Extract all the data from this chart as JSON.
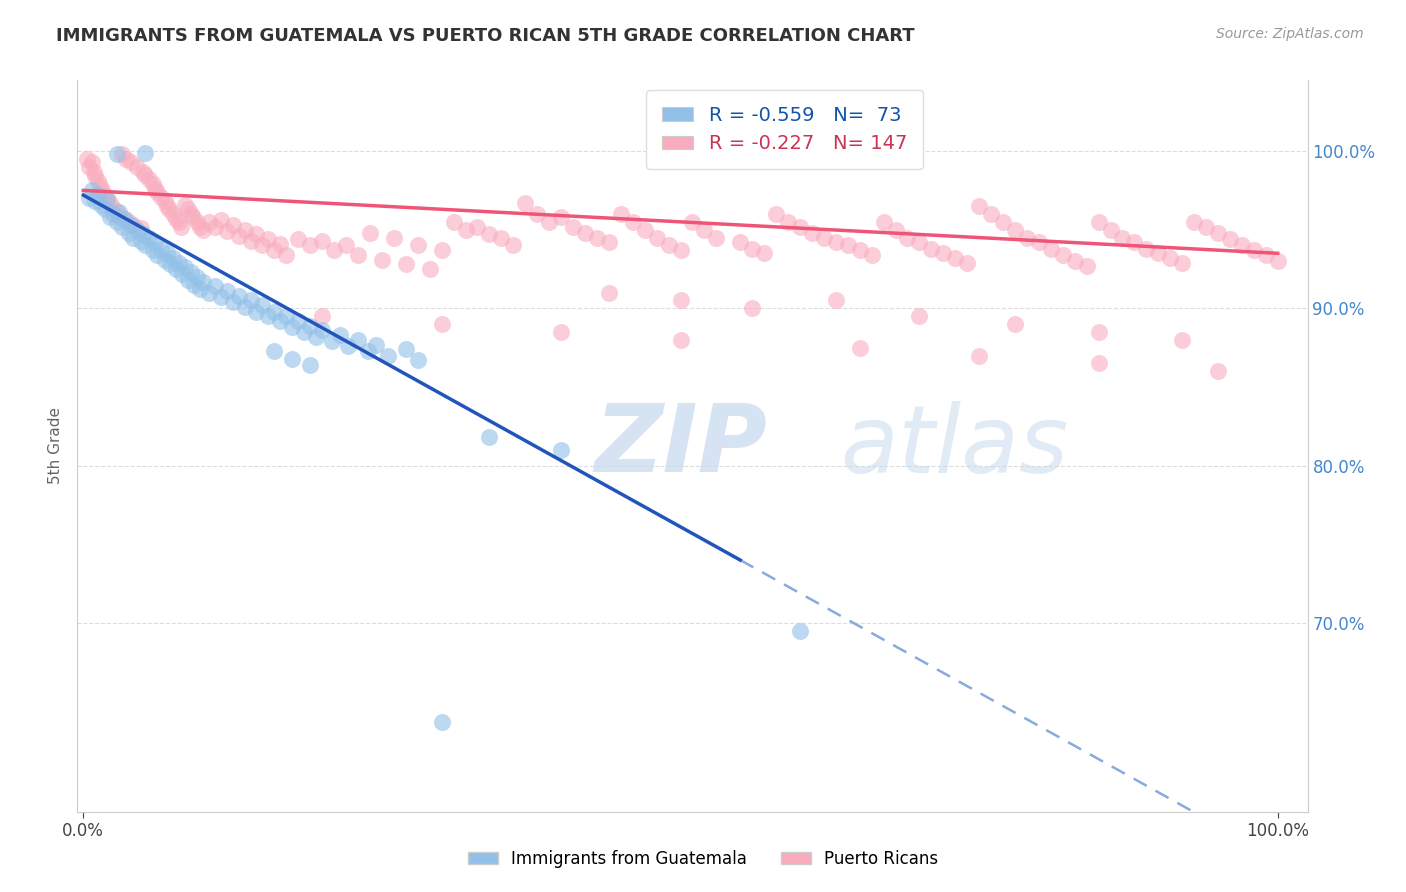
{
  "title": "IMMIGRANTS FROM GUATEMALA VS PUERTO RICAN 5TH GRADE CORRELATION CHART",
  "source": "Source: ZipAtlas.com",
  "ylabel": "5th Grade",
  "legend_r_blue": "-0.559",
  "legend_n_blue": "73",
  "legend_r_pink": "-0.227",
  "legend_n_pink": "147",
  "blue_color": "#92C0E8",
  "pink_color": "#F9ACBE",
  "line_blue": "#2255BB",
  "line_pink": "#EE5577",
  "line_dashed_color": "#88AADD",
  "watermark_zip": "ZIP",
  "watermark_atlas": "atlas",
  "blue_scatter": [
    [
      0.005,
      0.97
    ],
    [
      0.007,
      0.975
    ],
    [
      0.01,
      0.968
    ],
    [
      0.012,
      0.972
    ],
    [
      0.015,
      0.966
    ],
    [
      0.018,
      0.963
    ],
    [
      0.02,
      0.969
    ],
    [
      0.022,
      0.958
    ],
    [
      0.025,
      0.96
    ],
    [
      0.028,
      0.955
    ],
    [
      0.03,
      0.961
    ],
    [
      0.032,
      0.952
    ],
    [
      0.035,
      0.957
    ],
    [
      0.038,
      0.948
    ],
    [
      0.04,
      0.953
    ],
    [
      0.042,
      0.945
    ],
    [
      0.045,
      0.95
    ],
    [
      0.048,
      0.943
    ],
    [
      0.05,
      0.947
    ],
    [
      0.052,
      0.94
    ],
    [
      0.055,
      0.945
    ],
    [
      0.058,
      0.937
    ],
    [
      0.06,
      0.942
    ],
    [
      0.062,
      0.934
    ],
    [
      0.065,
      0.938
    ],
    [
      0.068,
      0.931
    ],
    [
      0.07,
      0.935
    ],
    [
      0.073,
      0.928
    ],
    [
      0.075,
      0.932
    ],
    [
      0.078,
      0.925
    ],
    [
      0.08,
      0.929
    ],
    [
      0.083,
      0.922
    ],
    [
      0.085,
      0.926
    ],
    [
      0.088,
      0.918
    ],
    [
      0.09,
      0.923
    ],
    [
      0.093,
      0.915
    ],
    [
      0.095,
      0.92
    ],
    [
      0.098,
      0.912
    ],
    [
      0.1,
      0.917
    ],
    [
      0.105,
      0.91
    ],
    [
      0.11,
      0.914
    ],
    [
      0.115,
      0.907
    ],
    [
      0.12,
      0.911
    ],
    [
      0.125,
      0.904
    ],
    [
      0.13,
      0.908
    ],
    [
      0.135,
      0.901
    ],
    [
      0.14,
      0.905
    ],
    [
      0.145,
      0.898
    ],
    [
      0.15,
      0.902
    ],
    [
      0.155,
      0.895
    ],
    [
      0.16,
      0.898
    ],
    [
      0.165,
      0.892
    ],
    [
      0.17,
      0.895
    ],
    [
      0.175,
      0.888
    ],
    [
      0.18,
      0.892
    ],
    [
      0.185,
      0.885
    ],
    [
      0.19,
      0.889
    ],
    [
      0.195,
      0.882
    ],
    [
      0.2,
      0.886
    ],
    [
      0.208,
      0.879
    ],
    [
      0.215,
      0.883
    ],
    [
      0.222,
      0.876
    ],
    [
      0.23,
      0.88
    ],
    [
      0.238,
      0.873
    ],
    [
      0.245,
      0.877
    ],
    [
      0.052,
      0.999
    ],
    [
      0.028,
      0.998
    ],
    [
      0.255,
      0.87
    ],
    [
      0.27,
      0.874
    ],
    [
      0.28,
      0.867
    ],
    [
      0.16,
      0.873
    ],
    [
      0.175,
      0.868
    ],
    [
      0.19,
      0.864
    ],
    [
      0.34,
      0.818
    ],
    [
      0.4,
      0.81
    ],
    [
      0.6,
      0.695
    ],
    [
      0.3,
      0.637
    ]
  ],
  "pink_scatter": [
    [
      0.003,
      0.995
    ],
    [
      0.005,
      0.99
    ],
    [
      0.007,
      0.993
    ],
    [
      0.009,
      0.987
    ],
    [
      0.01,
      0.984
    ],
    [
      0.012,
      0.981
    ],
    [
      0.014,
      0.978
    ],
    [
      0.016,
      0.975
    ],
    [
      0.018,
      0.972
    ],
    [
      0.02,
      0.97
    ],
    [
      0.022,
      0.967
    ],
    [
      0.025,
      0.964
    ],
    [
      0.028,
      0.961
    ],
    [
      0.03,
      0.959
    ],
    [
      0.032,
      0.998
    ],
    [
      0.034,
      0.957
    ],
    [
      0.036,
      0.995
    ],
    [
      0.038,
      0.955
    ],
    [
      0.04,
      0.993
    ],
    [
      0.042,
      0.953
    ],
    [
      0.045,
      0.99
    ],
    [
      0.048,
      0.951
    ],
    [
      0.05,
      0.987
    ],
    [
      0.052,
      0.985
    ],
    [
      0.055,
      0.982
    ],
    [
      0.058,
      0.979
    ],
    [
      0.06,
      0.976
    ],
    [
      0.062,
      0.974
    ],
    [
      0.065,
      0.971
    ],
    [
      0.068,
      0.968
    ],
    [
      0.07,
      0.965
    ],
    [
      0.072,
      0.963
    ],
    [
      0.075,
      0.96
    ],
    [
      0.078,
      0.957
    ],
    [
      0.08,
      0.955
    ],
    [
      0.082,
      0.952
    ],
    [
      0.085,
      0.966
    ],
    [
      0.088,
      0.963
    ],
    [
      0.09,
      0.96
    ],
    [
      0.092,
      0.958
    ],
    [
      0.095,
      0.955
    ],
    [
      0.098,
      0.952
    ],
    [
      0.1,
      0.95
    ],
    [
      0.105,
      0.955
    ],
    [
      0.11,
      0.952
    ],
    [
      0.115,
      0.956
    ],
    [
      0.12,
      0.949
    ],
    [
      0.125,
      0.953
    ],
    [
      0.13,
      0.946
    ],
    [
      0.135,
      0.95
    ],
    [
      0.14,
      0.943
    ],
    [
      0.145,
      0.947
    ],
    [
      0.15,
      0.94
    ],
    [
      0.155,
      0.944
    ],
    [
      0.16,
      0.937
    ],
    [
      0.165,
      0.941
    ],
    [
      0.17,
      0.934
    ],
    [
      0.18,
      0.944
    ],
    [
      0.19,
      0.94
    ],
    [
      0.2,
      0.943
    ],
    [
      0.21,
      0.937
    ],
    [
      0.22,
      0.94
    ],
    [
      0.23,
      0.934
    ],
    [
      0.24,
      0.948
    ],
    [
      0.25,
      0.931
    ],
    [
      0.26,
      0.945
    ],
    [
      0.27,
      0.928
    ],
    [
      0.28,
      0.94
    ],
    [
      0.29,
      0.925
    ],
    [
      0.3,
      0.937
    ],
    [
      0.31,
      0.955
    ],
    [
      0.32,
      0.95
    ],
    [
      0.33,
      0.952
    ],
    [
      0.34,
      0.947
    ],
    [
      0.35,
      0.945
    ],
    [
      0.36,
      0.94
    ],
    [
      0.37,
      0.967
    ],
    [
      0.38,
      0.96
    ],
    [
      0.39,
      0.955
    ],
    [
      0.4,
      0.958
    ],
    [
      0.41,
      0.952
    ],
    [
      0.42,
      0.948
    ],
    [
      0.43,
      0.945
    ],
    [
      0.44,
      0.942
    ],
    [
      0.45,
      0.96
    ],
    [
      0.46,
      0.955
    ],
    [
      0.47,
      0.95
    ],
    [
      0.48,
      0.945
    ],
    [
      0.49,
      0.94
    ],
    [
      0.5,
      0.937
    ],
    [
      0.51,
      0.955
    ],
    [
      0.52,
      0.95
    ],
    [
      0.53,
      0.945
    ],
    [
      0.55,
      0.942
    ],
    [
      0.56,
      0.938
    ],
    [
      0.57,
      0.935
    ],
    [
      0.58,
      0.96
    ],
    [
      0.59,
      0.955
    ],
    [
      0.6,
      0.952
    ],
    [
      0.61,
      0.948
    ],
    [
      0.62,
      0.945
    ],
    [
      0.63,
      0.942
    ],
    [
      0.64,
      0.94
    ],
    [
      0.65,
      0.937
    ],
    [
      0.66,
      0.934
    ],
    [
      0.67,
      0.955
    ],
    [
      0.68,
      0.95
    ],
    [
      0.69,
      0.945
    ],
    [
      0.7,
      0.942
    ],
    [
      0.71,
      0.938
    ],
    [
      0.72,
      0.935
    ],
    [
      0.73,
      0.932
    ],
    [
      0.74,
      0.929
    ],
    [
      0.75,
      0.965
    ],
    [
      0.76,
      0.96
    ],
    [
      0.77,
      0.955
    ],
    [
      0.78,
      0.95
    ],
    [
      0.79,
      0.945
    ],
    [
      0.8,
      0.942
    ],
    [
      0.81,
      0.938
    ],
    [
      0.82,
      0.934
    ],
    [
      0.83,
      0.93
    ],
    [
      0.84,
      0.927
    ],
    [
      0.85,
      0.955
    ],
    [
      0.86,
      0.95
    ],
    [
      0.87,
      0.945
    ],
    [
      0.88,
      0.942
    ],
    [
      0.89,
      0.938
    ],
    [
      0.9,
      0.935
    ],
    [
      0.91,
      0.932
    ],
    [
      0.92,
      0.929
    ],
    [
      0.93,
      0.955
    ],
    [
      0.94,
      0.952
    ],
    [
      0.95,
      0.948
    ],
    [
      0.96,
      0.944
    ],
    [
      0.97,
      0.94
    ],
    [
      0.98,
      0.937
    ],
    [
      0.99,
      0.934
    ],
    [
      1.0,
      0.93
    ],
    [
      0.44,
      0.91
    ],
    [
      0.5,
      0.905
    ],
    [
      0.56,
      0.9
    ],
    [
      0.63,
      0.905
    ],
    [
      0.7,
      0.895
    ],
    [
      0.78,
      0.89
    ],
    [
      0.85,
      0.885
    ],
    [
      0.92,
      0.88
    ],
    [
      0.2,
      0.895
    ],
    [
      0.3,
      0.89
    ],
    [
      0.4,
      0.885
    ],
    [
      0.5,
      0.88
    ],
    [
      0.65,
      0.875
    ],
    [
      0.75,
      0.87
    ],
    [
      0.85,
      0.865
    ],
    [
      0.95,
      0.86
    ]
  ],
  "blue_line": {
    "x0": 0.0,
    "y0": 0.972,
    "x1": 0.55,
    "y1": 0.74
  },
  "blue_line_solid_end": 0.55,
  "pink_line": {
    "x0": 0.0,
    "y0": 0.975,
    "x1": 1.0,
    "y1": 0.935
  },
  "ylim": [
    0.58,
    1.045
  ],
  "xlim": [
    -0.005,
    1.025
  ],
  "yticks_right": [
    0.7,
    0.8,
    0.9,
    1.0
  ],
  "ytick_right_labels": [
    "70.0%",
    "80.0%",
    "90.0%",
    "100.0%"
  ],
  "xtick_labels": [
    "0.0%",
    "100.0%"
  ],
  "grid_color": "#DDDDDD",
  "bg_color": "#FFFFFF"
}
